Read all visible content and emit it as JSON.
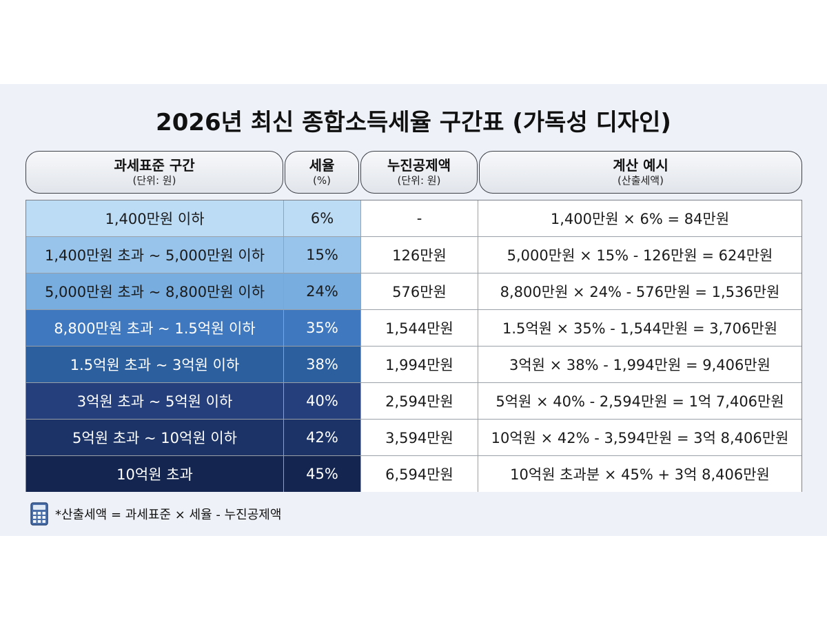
{
  "title": "2026년 최신 종합소득세율 구간표 (가독성 디자인)",
  "headers": [
    {
      "main": "과세표준 구간",
      "sub": "(단위: 원)"
    },
    {
      "main": "세율",
      "sub": "(%)"
    },
    {
      "main": "누진공제액",
      "sub": "(단위: 원)"
    },
    {
      "main": "계산 예시",
      "sub": "(산출세액)"
    }
  ],
  "rows": [
    {
      "bracket": "1,400만원 이하",
      "rate": "6%",
      "deduction": "-",
      "example": "1,400만원 × 6% = 84만원",
      "bg": "#bcdcf6",
      "fg": "#1a1a1a"
    },
    {
      "bracket": "1,400만원 초과 ~ 5,000만원 이하",
      "rate": "15%",
      "deduction": "126만원",
      "example": "5,000만원 × 15% - 126만원 = 624만원",
      "bg": "#98c4ec",
      "fg": "#1a1a1a"
    },
    {
      "bracket": "5,000만원 초과 ~ 8,800만원 이하",
      "rate": "24%",
      "deduction": "576만원",
      "example": "8,800만원 × 24% - 576만원 = 1,536만원",
      "bg": "#77addf",
      "fg": "#1a1a1a"
    },
    {
      "bracket": "8,800만원 초과 ~ 1.5억원 이하",
      "rate": "35%",
      "deduction": "1,544만원",
      "example": "1.5억원 × 35% - 1,544만원 = 3,706만원",
      "bg": "#3f78be",
      "fg": "#ffffff"
    },
    {
      "bracket": "1.5억원 초과 ~ 3억원 이하",
      "rate": "38%",
      "deduction": "1,994만원",
      "example": "3억원 × 38% - 1,994만원 = 9,406만원",
      "bg": "#2c5f9e",
      "fg": "#ffffff"
    },
    {
      "bracket": "3억원 초과 ~ 5억원 이하",
      "rate": "40%",
      "deduction": "2,594만원",
      "example": "5억원 × 40% - 2,594만원 = 1억 7,406만원",
      "bg": "#243f7c",
      "fg": "#ffffff"
    },
    {
      "bracket": "5억원 초과 ~ 10억원 이하",
      "rate": "42%",
      "deduction": "3,594만원",
      "example": "10억원 × 42% - 3,594만원 = 3억 8,406만원",
      "bg": "#1b3366",
      "fg": "#ffffff"
    },
    {
      "bracket": "10억원 초과",
      "rate": "45%",
      "deduction": "6,594만원",
      "example": "10억원 초과분 × 45% + 3억 8,406만원",
      "bg": "#14264f",
      "fg": "#ffffff"
    }
  ],
  "footnote": "*산출세액 = 과세표준 × 세율 - 누진공제액"
}
